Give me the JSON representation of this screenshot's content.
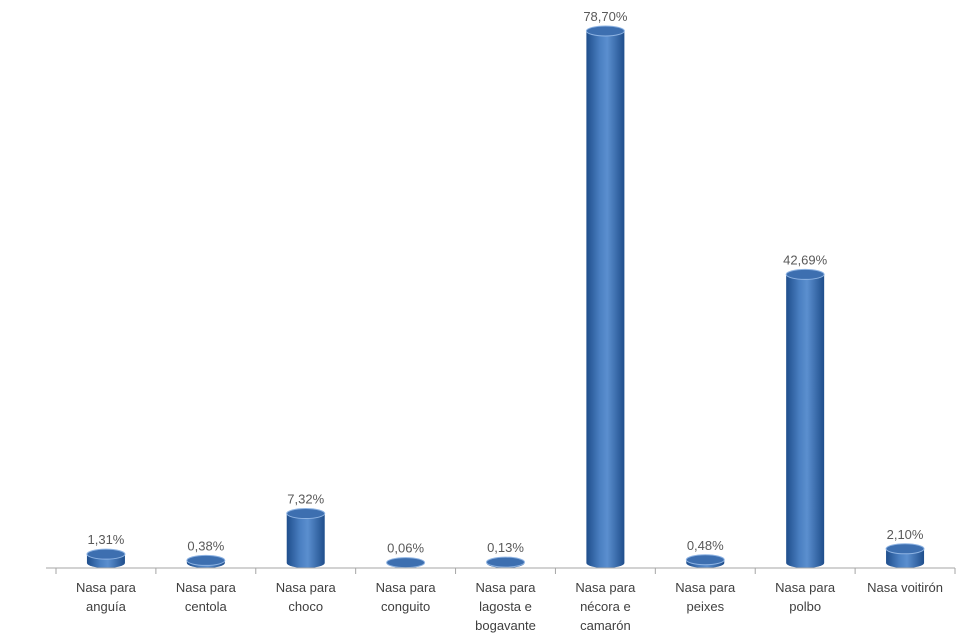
{
  "chart_data": {
    "type": "bar",
    "style": "3d-cylinder",
    "categories": [
      [
        "Nasa para",
        "anguía"
      ],
      [
        "Nasa para",
        "centola"
      ],
      [
        "Nasa para",
        "choco"
      ],
      [
        "Nasa para",
        "conguito"
      ],
      [
        "Nasa para",
        "lagosta e",
        "bogavante"
      ],
      [
        "Nasa para",
        "nécora e",
        "camarón"
      ],
      [
        "Nasa para",
        "peixes"
      ],
      [
        "Nasa para",
        "polbo"
      ],
      [
        "Nasa voitirón"
      ]
    ],
    "values": [
      1.31,
      0.38,
      7.32,
      0.06,
      0.13,
      78.7,
      0.48,
      42.69,
      2.1
    ],
    "data_labels": [
      "1,31%",
      "0,38%",
      "7,32%",
      "0,06%",
      "0,13%",
      "78,70%",
      "0,48%",
      "42,69%",
      "2,10%"
    ],
    "title": "",
    "xlabel": "",
    "ylabel": "",
    "ylim": [
      0,
      80
    ],
    "grid": false,
    "legend": "none",
    "colors": {
      "bar_dark": "#1f4e8c",
      "bar_mid": "#4a7fc1",
      "bar_light": "#8fb4e3",
      "top_fill": "#3d6fb0",
      "axis": "#a6a6a6"
    }
  }
}
